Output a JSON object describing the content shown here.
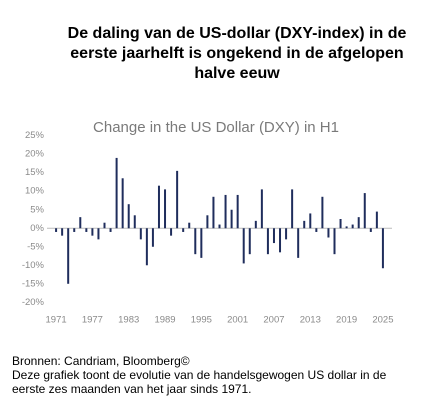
{
  "title": "De daling van de US-dollar (DXY-index) in de eerste jaarhelft is ongekend in de afgelopen halve eeuw",
  "chart_data": {
    "type": "bar",
    "title": "Change in the US Dollar (DXY) in H1",
    "color": "#1f2d5c",
    "x": [
      1971,
      1972,
      1973,
      1974,
      1975,
      1976,
      1977,
      1978,
      1979,
      1980,
      1981,
      1982,
      1983,
      1984,
      1985,
      1986,
      1987,
      1988,
      1989,
      1990,
      1991,
      1992,
      1993,
      1994,
      1995,
      1996,
      1997,
      1998,
      1999,
      2000,
      2001,
      2002,
      2003,
      2004,
      2005,
      2006,
      2007,
      2008,
      2009,
      2010,
      2011,
      2012,
      2013,
      2014,
      2015,
      2016,
      2017,
      2018,
      2019,
      2020,
      2021,
      2022,
      2023,
      2024,
      2025
    ],
    "values": [
      -1,
      -2,
      -15,
      -1,
      3,
      -1,
      -2,
      -3,
      1.5,
      -1,
      19,
      13.5,
      6.5,
      3.5,
      -3,
      -10,
      -5,
      11.5,
      10.5,
      -2,
      15.5,
      -1,
      1.5,
      -7,
      -8,
      3.5,
      8.5,
      1,
      9,
      5,
      9,
      -9.5,
      -7,
      2,
      10.5,
      -7,
      -4,
      -6.5,
      -3,
      10.5,
      -8,
      2,
      4,
      -1,
      8.5,
      -2.5,
      -7,
      2.5,
      0.5,
      1,
      3,
      9.5,
      -1,
      4.5,
      -10.8
    ],
    "xlim": [
      1969.5,
      2026.5
    ],
    "xticks": [
      1971,
      1977,
      1983,
      1989,
      1995,
      2001,
      2007,
      2013,
      2019,
      2025
    ],
    "ylim": [
      -21,
      26
    ],
    "yticks": [
      {
        "value": 25,
        "label": "25%"
      },
      {
        "value": 20,
        "label": "20%"
      },
      {
        "value": 15,
        "label": "15%"
      },
      {
        "value": 10,
        "label": "10%"
      },
      {
        "value": 5,
        "label": "5%"
      },
      {
        "value": 0,
        "label": "0%"
      },
      {
        "value": -5,
        "label": "-5%"
      },
      {
        "value": -10,
        "label": "-10%"
      },
      {
        "value": -15,
        "label": "-15%"
      },
      {
        "value": -20,
        "label": "-20%"
      }
    ]
  },
  "source": "Bronnen: Candriam, Bloomberg©",
  "note": "Deze grafiek toont de evolutie van de handelsgewogen US dollar in de eerste zes maanden van het jaar sinds 1971."
}
